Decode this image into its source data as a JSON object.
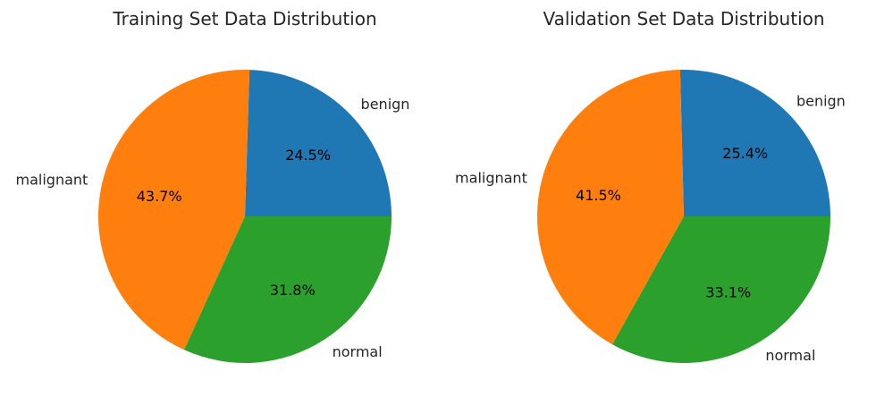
{
  "chart_data": [
    {
      "type": "pie",
      "title": "Training Set Data Distribution",
      "categories": [
        "benign",
        "malignant",
        "normal"
      ],
      "values": [
        24.5,
        43.7,
        31.8
      ],
      "value_labels": [
        "24.5%",
        "43.7%",
        "31.8%"
      ],
      "colors": [
        "#1f77b4",
        "#ff7f0e",
        "#2ca02c"
      ],
      "start_angle": 0,
      "direction": "counterclockwise"
    },
    {
      "type": "pie",
      "title": "Validation Set Data Distribution",
      "categories": [
        "benign",
        "malignant",
        "normal"
      ],
      "values": [
        25.4,
        41.5,
        33.1
      ],
      "value_labels": [
        "25.4%",
        "41.5%",
        "33.1%"
      ],
      "colors": [
        "#1f77b4",
        "#ff7f0e",
        "#2ca02c"
      ],
      "start_angle": 0,
      "direction": "counterclockwise"
    }
  ]
}
